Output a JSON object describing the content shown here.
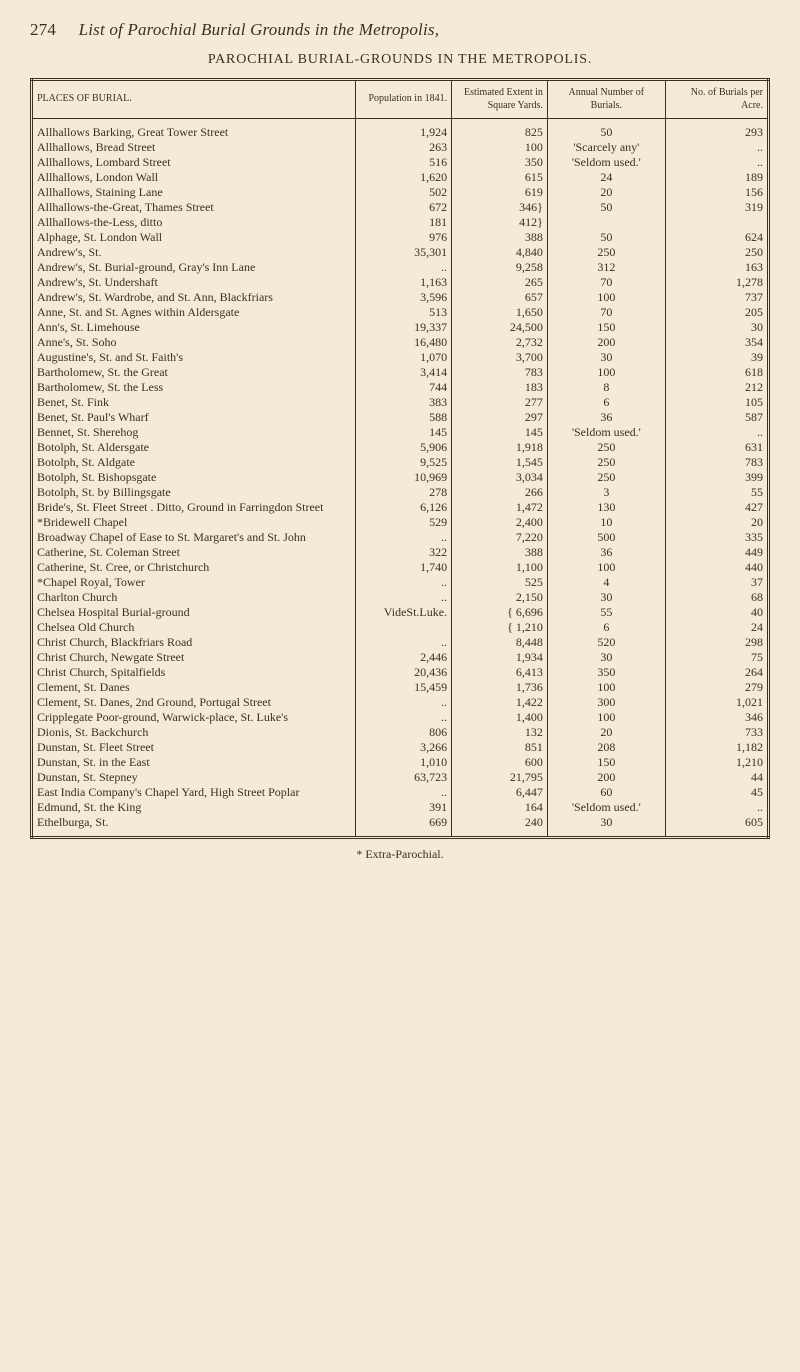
{
  "page": {
    "number": "274",
    "running_head": "List of Parochial Burial Grounds in the Metropolis,",
    "section_title": "PAROCHIAL BURIAL-GROUNDS IN THE METROPOLIS.",
    "footnote": "* Extra-Parochial."
  },
  "columns": [
    {
      "label": "PLACES OF BURIAL."
    },
    {
      "label": "Population in 1841."
    },
    {
      "label": "Estimated Extent in Square Yards."
    },
    {
      "label": "Annual Number of Burials."
    },
    {
      "label": "No. of Burials per Acre."
    }
  ],
  "rows": [
    {
      "place": "Allhallows Barking, Great Tower Street",
      "pop": "1,924",
      "ext": "825",
      "num": "50",
      "bur": "293"
    },
    {
      "place": "Allhallows, Bread Street",
      "pop": "263",
      "ext": "100",
      "num": "'Scarcely any'",
      "bur": ".."
    },
    {
      "place": "Allhallows, Lombard Street",
      "pop": "516",
      "ext": "350",
      "num": "'Seldom used.'",
      "bur": ".."
    },
    {
      "place": "Allhallows, London Wall",
      "pop": "1,620",
      "ext": "615",
      "num": "24",
      "bur": "189"
    },
    {
      "place": "Allhallows, Staining Lane",
      "pop": "502",
      "ext": "619",
      "num": "20",
      "bur": "156"
    },
    {
      "place": "Allhallows-the-Great, Thames Street",
      "pop": "672",
      "ext": "346}",
      "num": "50",
      "bur": "319"
    },
    {
      "place": "Allhallows-the-Less, ditto",
      "pop": "181",
      "ext": "412}",
      "num": "",
      "bur": ""
    },
    {
      "place": "Alphage, St. London Wall",
      "pop": "976",
      "ext": "388",
      "num": "50",
      "bur": "624"
    },
    {
      "place": "Andrew's, St.",
      "pop": "35,301",
      "ext": "4,840",
      "num": "250",
      "bur": "250"
    },
    {
      "place": "Andrew's, St. Burial-ground, Gray's Inn Lane",
      "pop": "..",
      "ext": "9,258",
      "num": "312",
      "bur": "163"
    },
    {
      "place": "Andrew's, St. Undershaft",
      "pop": "1,163",
      "ext": "265",
      "num": "70",
      "bur": "1,278"
    },
    {
      "place": "Andrew's, St. Wardrobe, and St. Ann, Blackfriars",
      "pop": "3,596",
      "ext": "657",
      "num": "100",
      "bur": "737"
    },
    {
      "place": "Anne, St. and St. Agnes within Aldersgate",
      "pop": "513",
      "ext": "1,650",
      "num": "70",
      "bur": "205"
    },
    {
      "place": "Ann's, St. Limehouse",
      "pop": "19,337",
      "ext": "24,500",
      "num": "150",
      "bur": "30"
    },
    {
      "place": "Anne's, St. Soho",
      "pop": "16,480",
      "ext": "2,732",
      "num": "200",
      "bur": "354"
    },
    {
      "place": "Augustine's, St. and St. Faith's",
      "pop": "1,070",
      "ext": "3,700",
      "num": "30",
      "bur": "39"
    },
    {
      "place": "Bartholomew, St. the Great",
      "pop": "3,414",
      "ext": "783",
      "num": "100",
      "bur": "618"
    },
    {
      "place": "Bartholomew, St. the Less",
      "pop": "744",
      "ext": "183",
      "num": "8",
      "bur": "212"
    },
    {
      "place": "Benet, St. Fink",
      "pop": "383",
      "ext": "277",
      "num": "6",
      "bur": "105"
    },
    {
      "place": "Benet, St. Paul's Wharf",
      "pop": "588",
      "ext": "297",
      "num": "36",
      "bur": "587"
    },
    {
      "place": "Bennet, St. Sherehog",
      "pop": "145",
      "ext": "145",
      "num": "'Seldom used.'",
      "bur": ".."
    },
    {
      "place": "Botolph, St. Aldersgate",
      "pop": "5,906",
      "ext": "1,918",
      "num": "250",
      "bur": "631"
    },
    {
      "place": "Botolph, St. Aldgate",
      "pop": "9,525",
      "ext": "1,545",
      "num": "250",
      "bur": "783"
    },
    {
      "place": "Botolph, St. Bishopsgate",
      "pop": "10,969",
      "ext": "3,034",
      "num": "250",
      "bur": "399"
    },
    {
      "place": "Botolph, St. by Billingsgate",
      "pop": "278",
      "ext": "266",
      "num": "3",
      "bur": "55"
    },
    {
      "place": "Bride's, St. Fleet Street .  Ditto, Ground in Farringdon Street",
      "pop": "6,126",
      "ext": "1,472",
      "num": "130",
      "bur": "427"
    },
    {
      "place": "*Bridewell Chapel",
      "pop": "529",
      "ext": "2,400",
      "num": "10",
      "bur": "20"
    },
    {
      "place": "Broadway Chapel of Ease to St. Margaret's and St. John",
      "pop": "..",
      "ext": "7,220",
      "num": "500",
      "bur": "335"
    },
    {
      "place": "Catherine, St. Coleman Street",
      "pop": "322",
      "ext": "388",
      "num": "36",
      "bur": "449"
    },
    {
      "place": "Catherine, St. Cree, or Christchurch",
      "pop": "1,740",
      "ext": "1,100",
      "num": "100",
      "bur": "440"
    },
    {
      "place": "*Chapel Royal, Tower",
      "pop": "..",
      "ext": "525",
      "num": "4",
      "bur": "37"
    },
    {
      "place": "Charlton Church",
      "pop": "..",
      "ext": "2,150",
      "num": "30",
      "bur": "68"
    },
    {
      "place": "Chelsea Hospital Burial-ground",
      "pop": "VideSt.Luke.",
      "ext": "{ 6,696",
      "num": "55",
      "bur": "40"
    },
    {
      "place": "Chelsea Old Church",
      "pop": "",
      "ext": "{ 1,210",
      "num": "6",
      "bur": "24"
    },
    {
      "place": "Christ Church, Blackfriars Road",
      "pop": "..",
      "ext": "8,448",
      "num": "520",
      "bur": "298"
    },
    {
      "place": "Christ Church, Newgate Street",
      "pop": "2,446",
      "ext": "1,934",
      "num": "30",
      "bur": "75"
    },
    {
      "place": "Christ Church, Spitalfields",
      "pop": "20,436",
      "ext": "6,413",
      "num": "350",
      "bur": "264"
    },
    {
      "place": "Clement, St. Danes",
      "pop": "15,459",
      "ext": "1,736",
      "num": "100",
      "bur": "279"
    },
    {
      "place": "Clement, St. Danes, 2nd Ground, Portugal Street",
      "pop": "..",
      "ext": "1,422",
      "num": "300",
      "bur": "1,021"
    },
    {
      "place": "Cripplegate Poor-ground, Warwick-place, St. Luke's",
      "pop": "..",
      "ext": "1,400",
      "num": "100",
      "bur": "346"
    },
    {
      "place": "Dionis, St. Backchurch",
      "pop": "806",
      "ext": "132",
      "num": "20",
      "bur": "733"
    },
    {
      "place": "Dunstan, St. Fleet Street",
      "pop": "3,266",
      "ext": "851",
      "num": "208",
      "bur": "1,182"
    },
    {
      "place": "Dunstan, St. in the East",
      "pop": "1,010",
      "ext": "600",
      "num": "150",
      "bur": "1,210"
    },
    {
      "place": "Dunstan, St. Stepney",
      "pop": "63,723",
      "ext": "21,795",
      "num": "200",
      "bur": "44"
    },
    {
      "place": "East India Company's Chapel Yard, High Street Poplar",
      "pop": "..",
      "ext": "6,447",
      "num": "60",
      "bur": "45"
    },
    {
      "place": "Edmund, St. the King",
      "pop": "391",
      "ext": "164",
      "num": "'Seldom used.'",
      "bur": ".."
    },
    {
      "place": "Ethelburga, St.",
      "pop": "669",
      "ext": "240",
      "num": "30",
      "bur": "605"
    }
  ]
}
